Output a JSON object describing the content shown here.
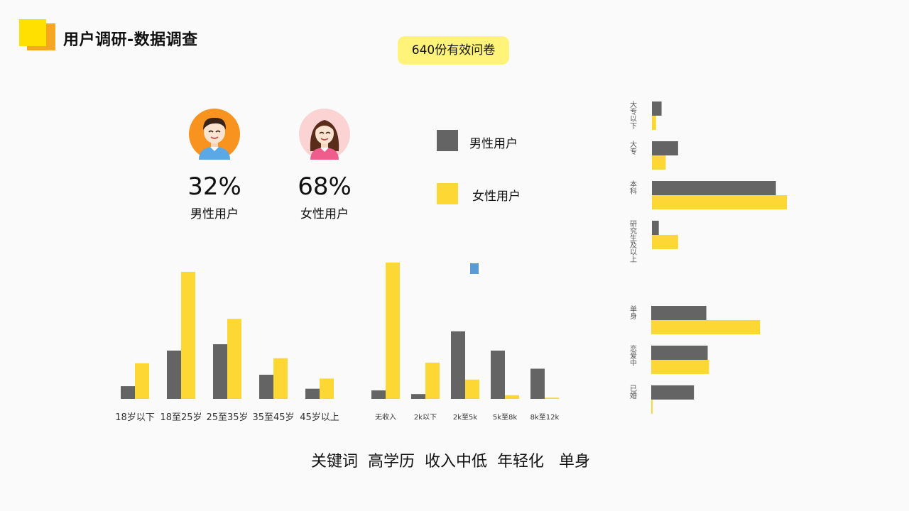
{
  "header": {
    "title": "用户调研-数据调查",
    "badge": "640份有效问卷"
  },
  "gender": [
    {
      "percent": "32%",
      "label": "男性用户",
      "icon": "male-avatar-icon"
    },
    {
      "percent": "68%",
      "label": "女性用户",
      "icon": "female-avatar-icon"
    }
  ],
  "legend": {
    "male": "男性用户",
    "female": "女性用户"
  },
  "colors": {
    "male": "#646464",
    "female": "#fdd835",
    "accent": "#ffe000",
    "accent2": "#f5a623",
    "badge_bg": "#fff37a",
    "blue": "#5b9bd5"
  },
  "keywords": "关键词  高学历  收入中低  年轻化   单身",
  "chart_data": [
    {
      "type": "bar",
      "categories": [
        "18岁以下",
        "18至25岁",
        "25至35岁",
        "35至45岁",
        "45岁以上"
      ],
      "series": [
        {
          "name": "男性用户",
          "values": [
            10,
            38,
            43,
            19,
            8
          ]
        },
        {
          "name": "女性用户",
          "values": [
            28,
            100,
            63,
            32,
            16
          ]
        }
      ],
      "ylim": [
        0,
        100
      ]
    },
    {
      "type": "bar",
      "categories": [
        "无收入",
        "2k以下",
        "2k至5k",
        "5k至8k",
        "8k至12k"
      ],
      "series": [
        {
          "name": "男性用户",
          "values": [
            7,
            4,
            56,
            40,
            25
          ]
        },
        {
          "name": "女性用户",
          "values": [
            113,
            30,
            16,
            3,
            1
          ]
        }
      ],
      "ylim": [
        0,
        120
      ]
    },
    {
      "type": "bar",
      "orientation": "horizontal",
      "categories": [
        "大专以下",
        "大专",
        "本科",
        "研究生及以上"
      ],
      "series": [
        {
          "name": "男性用户",
          "values": [
            7,
            19,
            90,
            5
          ]
        },
        {
          "name": "女性用户",
          "values": [
            3,
            10,
            98,
            19
          ]
        }
      ],
      "xlim": [
        0,
        100
      ]
    },
    {
      "type": "bar",
      "orientation": "horizontal",
      "categories": [
        "单身",
        "恋爱中",
        "已婚"
      ],
      "series": [
        {
          "name": "男性用户",
          "values": [
            40,
            41,
            31
          ]
        },
        {
          "name": "女性用户",
          "values": [
            79,
            42,
            1
          ]
        }
      ],
      "xlim": [
        0,
        100
      ]
    }
  ]
}
